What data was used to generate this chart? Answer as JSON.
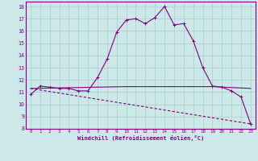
{
  "title": "",
  "xlabel": "Windchill (Refroidissement éolien,°C)",
  "background_color": "#cce8e8",
  "line_color": "#800080",
  "grid_color": "#aacccc",
  "xlim": [
    -0.5,
    23.5
  ],
  "ylim": [
    8,
    18.4
  ],
  "xtick_vals": [
    0,
    1,
    2,
    3,
    4,
    5,
    6,
    7,
    8,
    9,
    10,
    11,
    12,
    13,
    14,
    15,
    16,
    17,
    18,
    19,
    20,
    21,
    22,
    23
  ],
  "ytick_vals": [
    8,
    9,
    10,
    11,
    12,
    13,
    14,
    15,
    16,
    17,
    18
  ],
  "curve1_x": [
    0,
    1,
    2,
    3,
    4,
    5,
    6,
    7,
    8,
    9,
    10,
    11,
    12,
    13,
    14,
    15,
    16,
    17,
    18,
    19,
    20,
    21,
    22,
    23
  ],
  "curve1_y": [
    10.8,
    11.5,
    11.4,
    11.3,
    11.3,
    11.1,
    11.1,
    12.2,
    13.7,
    15.9,
    16.9,
    17.0,
    16.6,
    17.1,
    18.0,
    16.5,
    16.6,
    15.2,
    13.0,
    11.5,
    11.4,
    11.1,
    10.6,
    8.4
  ],
  "curve2_x": [
    0,
    10,
    19,
    23
  ],
  "curve2_y": [
    11.3,
    11.45,
    11.45,
    11.3
  ],
  "curve3_x": [
    0,
    23
  ],
  "curve3_y": [
    11.3,
    8.4
  ]
}
